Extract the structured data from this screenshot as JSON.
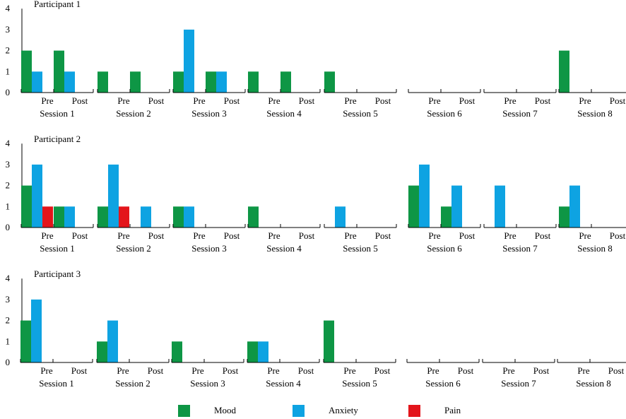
{
  "colors": {
    "mood": "#0E9645",
    "anxiety": "#0EA3E2",
    "pain": "#E3151B",
    "axis": "#000000"
  },
  "chart_data": {
    "type": "bar",
    "groups": [
      "Pre",
      "Post"
    ],
    "sessions": [
      "Session 1",
      "Session 2",
      "Session 3",
      "Session 4",
      "Session 5",
      "Session 6",
      "Session 7",
      "Session 8"
    ],
    "ylim": [
      0,
      4
    ],
    "yticks": [
      "0",
      "1",
      "2",
      "3",
      "4"
    ],
    "legend": [
      {
        "key": "mood",
        "label": "Mood"
      },
      {
        "key": "anxiety",
        "label": "Anxiety"
      },
      {
        "key": "pain",
        "label": "Pain"
      }
    ],
    "panels": [
      {
        "title": "Participant 1",
        "data": [
          {
            "pre": [
              2,
              1,
              0
            ],
            "post": [
              2,
              1,
              0
            ]
          },
          {
            "pre": [
              1,
              0,
              0
            ],
            "post": [
              1,
              0,
              0
            ]
          },
          {
            "pre": [
              1,
              3,
              0
            ],
            "post": [
              1,
              1,
              0
            ]
          },
          {
            "pre": [
              1,
              0,
              0
            ],
            "post": [
              1,
              0,
              0
            ]
          },
          {
            "pre": [
              1,
              0,
              0
            ],
            "post": [
              0,
              0,
              0
            ]
          },
          {
            "pre": [
              0,
              0,
              0
            ],
            "post": [
              0,
              0,
              0
            ]
          },
          {
            "pre": [
              0,
              0,
              0
            ],
            "post": [
              0,
              0,
              0
            ]
          },
          {
            "pre": [
              2,
              0,
              0
            ],
            "post": [
              0,
              0,
              0
            ]
          }
        ]
      },
      {
        "title": "Participant 2",
        "data": [
          {
            "pre": [
              2,
              3,
              1
            ],
            "post": [
              1,
              1,
              0
            ]
          },
          {
            "pre": [
              1,
              3,
              1
            ],
            "post": [
              0,
              1,
              0
            ]
          },
          {
            "pre": [
              1,
              1,
              0
            ],
            "post": [
              0,
              0,
              0
            ]
          },
          {
            "pre": [
              1,
              0,
              0
            ],
            "post": [
              0,
              0,
              0
            ]
          },
          {
            "pre": [
              0,
              1,
              0
            ],
            "post": [
              0,
              0,
              0
            ]
          },
          {
            "pre": [
              2,
              3,
              0
            ],
            "post": [
              1,
              2,
              0
            ]
          },
          {
            "pre": [
              0,
              2,
              0
            ],
            "post": [
              0,
              0,
              0
            ]
          },
          {
            "pre": [
              1,
              2,
              0
            ],
            "post": [
              0,
              0,
              0
            ]
          }
        ]
      },
      {
        "title": "Participant 3",
        "data": [
          {
            "pre": [
              2,
              3,
              0
            ],
            "post": [
              0,
              0,
              0
            ]
          },
          {
            "pre": [
              1,
              2,
              0
            ],
            "post": [
              0,
              0,
              0
            ]
          },
          {
            "pre": [
              1,
              0,
              0
            ],
            "post": [
              0,
              0,
              0
            ]
          },
          {
            "pre": [
              1,
              1,
              0
            ],
            "post": [
              0,
              0,
              0
            ]
          },
          {
            "pre": [
              2,
              0,
              0
            ],
            "post": [
              0,
              0,
              0
            ]
          },
          {
            "pre": [
              0,
              0,
              0
            ],
            "post": [
              0,
              0,
              0
            ]
          },
          {
            "pre": [
              0,
              0,
              0
            ],
            "post": [
              0,
              0,
              0
            ]
          },
          {
            "pre": [
              0,
              0,
              0
            ],
            "post": [
              0,
              0,
              0
            ]
          }
        ]
      }
    ]
  }
}
